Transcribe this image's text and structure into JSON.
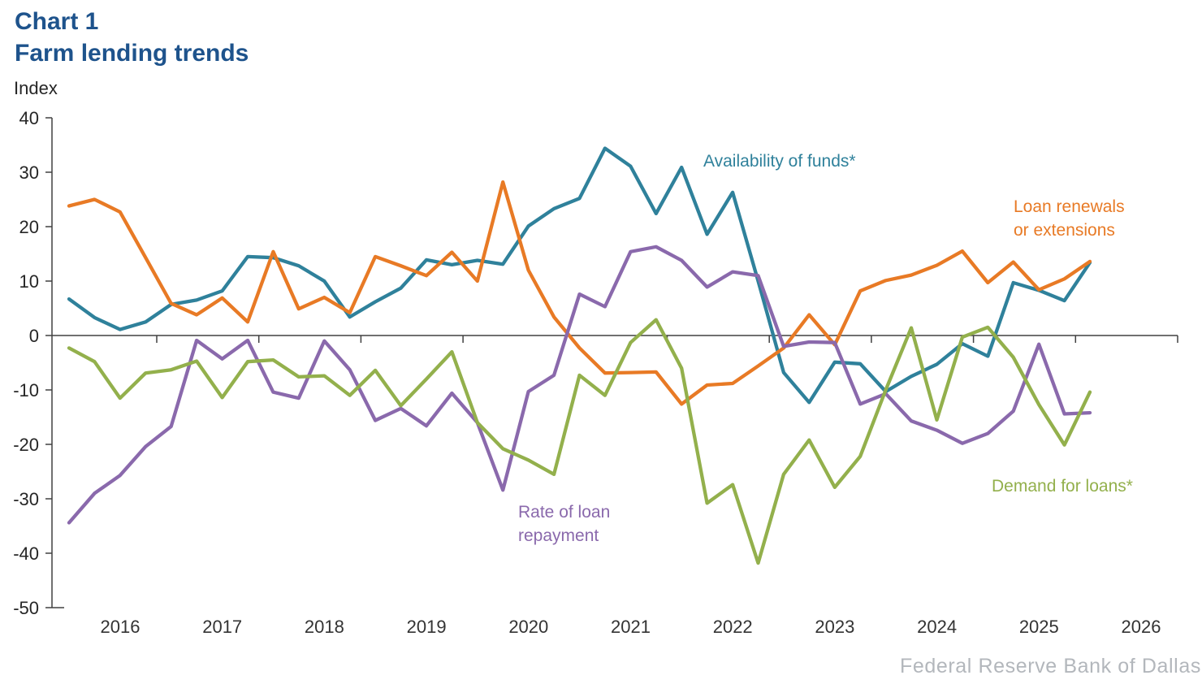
{
  "header": {
    "chart_label": "Chart 1",
    "title": "Farm lending trends",
    "y_axis_unit": "Index"
  },
  "footer": {
    "source": "Federal Reserve Bank of Dallas"
  },
  "chart_data": {
    "type": "line",
    "title": "Farm lending trends",
    "ylabel": "Index",
    "ylim": [
      -50,
      40
    ],
    "y_ticks": [
      40,
      30,
      20,
      10,
      0,
      -10,
      -20,
      -30,
      -40,
      -50
    ],
    "x_year_labels": [
      "2016",
      "2017",
      "2018",
      "2019",
      "2020",
      "2021",
      "2022",
      "2023",
      "2024",
      "2025",
      "2026"
    ],
    "grid": "none",
    "legend_position": "labels-near-lines",
    "x": [
      "2015:Q3",
      "2015:Q4",
      "2016:Q1",
      "2016:Q2",
      "2016:Q3",
      "2016:Q4",
      "2017:Q1",
      "2017:Q2",
      "2017:Q3",
      "2017:Q4",
      "2018:Q1",
      "2018:Q2",
      "2018:Q3",
      "2018:Q4",
      "2019:Q1",
      "2019:Q2",
      "2019:Q3",
      "2019:Q4",
      "2020:Q1",
      "2020:Q2",
      "2020:Q3",
      "2020:Q4",
      "2021:Q1",
      "2021:Q2",
      "2021:Q3",
      "2021:Q4",
      "2022:Q1",
      "2022:Q2",
      "2022:Q3",
      "2022:Q4",
      "2023:Q1",
      "2023:Q2",
      "2023:Q3",
      "2023:Q4",
      "2024:Q1",
      "2024:Q2",
      "2024:Q3",
      "2024:Q4",
      "2025:Q1",
      "2025:Q2",
      "2025:Q3"
    ],
    "series": [
      {
        "name": "Availability of funds*",
        "color": "#2F819B",
        "values": [
          6.7,
          3.3,
          1.1,
          2.5,
          5.7,
          6.5,
          8.2,
          14.5,
          14.3,
          12.8,
          10.0,
          3.4,
          6.2,
          8.7,
          13.9,
          13.0,
          13.8,
          13.1,
          20.1,
          23.3,
          25.2,
          34.4,
          31.1,
          22.4,
          30.9,
          18.6,
          26.3,
          10.0,
          -6.8,
          -12.3,
          -4.9,
          -5.2,
          -10.3,
          -7.5,
          -5.3,
          -1.5,
          -3.8,
          9.7,
          8.3,
          6.4,
          13.4
        ]
      },
      {
        "name": "Loan renewals or extensions",
        "color": "#E87A25",
        "values": [
          23.8,
          25.0,
          22.7,
          14.3,
          5.9,
          3.8,
          6.9,
          2.5,
          15.4,
          4.9,
          7.0,
          4.2,
          14.5,
          12.8,
          11.0,
          15.3,
          10.0,
          28.2,
          12.0,
          3.4,
          -2.3,
          -6.9,
          -6.8,
          -6.7,
          -12.6,
          -9.1,
          -8.8,
          -5.6,
          -2.3,
          3.8,
          -1.7,
          8.2,
          10.1,
          11.1,
          12.9,
          15.5,
          9.7,
          13.5,
          8.4,
          10.4,
          13.6
        ]
      },
      {
        "name": "Rate of loan repayment",
        "color": "#8A69AC",
        "values": [
          -34.4,
          -29.0,
          -25.7,
          -20.4,
          -16.7,
          -0.9,
          -4.3,
          -0.9,
          -10.4,
          -11.5,
          -1.0,
          -6.3,
          -15.6,
          -13.4,
          -16.6,
          -10.6,
          -16.0,
          -28.4,
          -10.3,
          -7.3,
          7.6,
          5.3,
          15.4,
          16.3,
          13.8,
          8.9,
          11.7,
          11.0,
          -2.0,
          -1.2,
          -1.3,
          -12.6,
          -10.7,
          -15.7,
          -17.4,
          -19.8,
          -18.0,
          -13.9,
          -1.6,
          -14.4,
          -14.2
        ]
      },
      {
        "name": "Demand for loans*",
        "color": "#93B04C",
        "values": [
          -2.3,
          -4.8,
          -11.5,
          -6.9,
          -6.3,
          -4.7,
          -11.4,
          -4.8,
          -4.5,
          -7.6,
          -7.4,
          -11.0,
          -6.4,
          -12.9,
          -8.0,
          -3.0,
          -16.0,
          -20.8,
          -22.9,
          -25.5,
          -7.3,
          -11.0,
          -1.3,
          2.9,
          -6.0,
          -30.8,
          -27.4,
          -41.8,
          -25.5,
          -19.2,
          -27.9,
          -22.2,
          -10.0,
          1.4,
          -15.5,
          -0.3,
          1.5,
          -4.0,
          -12.7,
          -20.1,
          -10.4
        ]
      }
    ],
    "legend": [
      {
        "text": "Availability of funds*",
        "series": 0
      },
      {
        "text": "Loan renewals\nor extensions",
        "series": 1
      },
      {
        "text": "Rate of loan\nrepayment",
        "series": 2
      },
      {
        "text": "Demand for loans*",
        "series": 3
      }
    ]
  }
}
